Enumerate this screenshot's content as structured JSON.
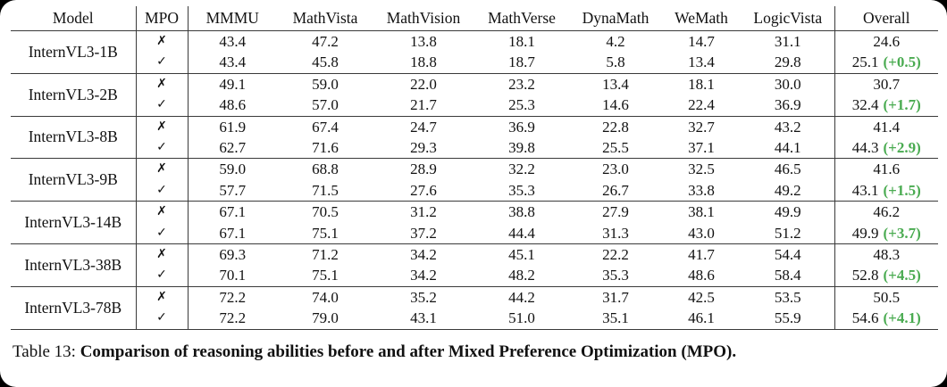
{
  "table": {
    "columns": [
      "Model",
      "MPO",
      "MMMU",
      "MathVista",
      "MathVision",
      "MathVerse",
      "DynaMath",
      "WeMath",
      "LogicVista",
      "Overall"
    ],
    "mpo_false_glyph": "✗",
    "mpo_true_glyph": "✓",
    "delta_color": "#4aab51",
    "groups": [
      {
        "model": "InternVL3-1B",
        "rows": [
          {
            "mpo": false,
            "values": [
              "43.4",
              "47.2",
              "13.8",
              "18.1",
              "4.2",
              "14.7",
              "31.1"
            ],
            "overall": "24.6",
            "delta": ""
          },
          {
            "mpo": true,
            "values": [
              "43.4",
              "45.8",
              "18.8",
              "18.7",
              "5.8",
              "13.4",
              "29.8"
            ],
            "overall": "25.1",
            "delta": "(+0.5)"
          }
        ]
      },
      {
        "model": "InternVL3-2B",
        "rows": [
          {
            "mpo": false,
            "values": [
              "49.1",
              "59.0",
              "22.0",
              "23.2",
              "13.4",
              "18.1",
              "30.0"
            ],
            "overall": "30.7",
            "delta": ""
          },
          {
            "mpo": true,
            "values": [
              "48.6",
              "57.0",
              "21.7",
              "25.3",
              "14.6",
              "22.4",
              "36.9"
            ],
            "overall": "32.4",
            "delta": "(+1.7)"
          }
        ]
      },
      {
        "model": "InternVL3-8B",
        "rows": [
          {
            "mpo": false,
            "values": [
              "61.9",
              "67.4",
              "24.7",
              "36.9",
              "22.8",
              "32.7",
              "43.2"
            ],
            "overall": "41.4",
            "delta": ""
          },
          {
            "mpo": true,
            "values": [
              "62.7",
              "71.6",
              "29.3",
              "39.8",
              "25.5",
              "37.1",
              "44.1"
            ],
            "overall": "44.3",
            "delta": "(+2.9)"
          }
        ]
      },
      {
        "model": "InternVL3-9B",
        "rows": [
          {
            "mpo": false,
            "values": [
              "59.0",
              "68.8",
              "28.9",
              "32.2",
              "23.0",
              "32.5",
              "46.5"
            ],
            "overall": "41.6",
            "delta": ""
          },
          {
            "mpo": true,
            "values": [
              "57.7",
              "71.5",
              "27.6",
              "35.3",
              "26.7",
              "33.8",
              "49.2"
            ],
            "overall": "43.1",
            "delta": "(+1.5)"
          }
        ]
      },
      {
        "model": "InternVL3-14B",
        "rows": [
          {
            "mpo": false,
            "values": [
              "67.1",
              "70.5",
              "31.2",
              "38.8",
              "27.9",
              "38.1",
              "49.9"
            ],
            "overall": "46.2",
            "delta": ""
          },
          {
            "mpo": true,
            "values": [
              "67.1",
              "75.1",
              "37.2",
              "44.4",
              "31.3",
              "43.0",
              "51.2"
            ],
            "overall": "49.9",
            "delta": "(+3.7)"
          }
        ]
      },
      {
        "model": "InternVL3-38B",
        "rows": [
          {
            "mpo": false,
            "values": [
              "69.3",
              "71.2",
              "34.2",
              "45.1",
              "22.2",
              "41.7",
              "54.4"
            ],
            "overall": "48.3",
            "delta": ""
          },
          {
            "mpo": true,
            "values": [
              "70.1",
              "75.1",
              "34.2",
              "48.2",
              "35.3",
              "48.6",
              "58.4"
            ],
            "overall": "52.8",
            "delta": "(+4.5)"
          }
        ]
      },
      {
        "model": "InternVL3-78B",
        "rows": [
          {
            "mpo": false,
            "values": [
              "72.2",
              "74.0",
              "35.2",
              "44.2",
              "31.7",
              "42.5",
              "53.5"
            ],
            "overall": "50.5",
            "delta": ""
          },
          {
            "mpo": true,
            "values": [
              "72.2",
              "79.0",
              "43.1",
              "51.0",
              "35.1",
              "46.1",
              "55.9"
            ],
            "overall": "54.6",
            "delta": "(+4.1)"
          }
        ]
      }
    ]
  },
  "caption": {
    "prefix": "Table 13: ",
    "bold_text": "Comparison of reasoning abilities before and after Mixed Preference Optimization (MPO)."
  }
}
